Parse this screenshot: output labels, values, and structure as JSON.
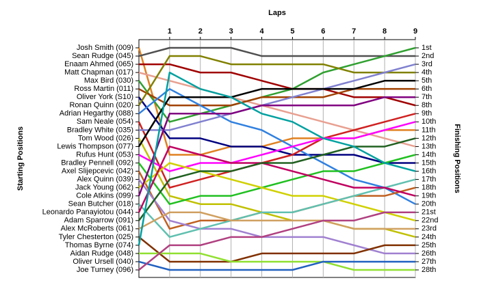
{
  "chart_data": {
    "type": "bump",
    "title": "Laps",
    "y_label_left": "Starting Positions",
    "y_label_right": "Finishing Positions",
    "x": [
      0,
      1,
      2,
      3,
      4,
      5,
      6,
      7,
      8,
      9
    ],
    "xlim": [
      0,
      9
    ],
    "xticks": [
      1,
      2,
      3,
      4,
      5,
      6,
      7,
      8,
      9
    ],
    "ylim": [
      1,
      28
    ],
    "yticks": [
      {
        "value": 1,
        "label": "1st"
      },
      {
        "value": 2,
        "label": "2nd"
      },
      {
        "value": 3,
        "label": "3rd"
      },
      {
        "value": 4,
        "label": "4th"
      },
      {
        "value": 5,
        "label": "5th"
      },
      {
        "value": 6,
        "label": "6th"
      },
      {
        "value": 7,
        "label": "7th"
      },
      {
        "value": 8,
        "label": "8th"
      },
      {
        "value": 9,
        "label": "9th"
      },
      {
        "value": 10,
        "label": "10th"
      },
      {
        "value": 11,
        "label": "11th"
      },
      {
        "value": 12,
        "label": "12th"
      },
      {
        "value": 13,
        "label": "13th"
      },
      {
        "value": 14,
        "label": "14th"
      },
      {
        "value": 15,
        "label": "15th"
      },
      {
        "value": 16,
        "label": "16th"
      },
      {
        "value": 17,
        "label": "17th"
      },
      {
        "value": 18,
        "label": "18th"
      },
      {
        "value": 19,
        "label": "19th"
      },
      {
        "value": 20,
        "label": "20th"
      },
      {
        "value": 21,
        "label": "21st"
      },
      {
        "value": 22,
        "label": "22nd"
      },
      {
        "value": 23,
        "label": "23rd"
      },
      {
        "value": 24,
        "label": "24th"
      },
      {
        "value": 25,
        "label": "25th"
      },
      {
        "value": 26,
        "label": "26th"
      },
      {
        "value": 27,
        "label": "27th"
      },
      {
        "value": 28,
        "label": "28th"
      }
    ],
    "grid": true,
    "series": [
      {
        "name": "Josh Smith (009)",
        "color": "#e08020",
        "values": [
          1,
          14,
          14,
          13,
          13,
          12,
          12,
          12,
          11,
          11
        ]
      },
      {
        "name": "Sean Rudge (045)",
        "color": "#505050",
        "values": [
          2,
          1,
          1,
          1,
          2,
          2,
          2,
          2,
          2,
          2
        ]
      },
      {
        "name": "Enaam Ahmed (065)",
        "color": "#a00000",
        "values": [
          3,
          3,
          4,
          4,
          5,
          6,
          6,
          7,
          7,
          8
        ]
      },
      {
        "name": "Matt Chapman (017)",
        "color": "#e8a090",
        "values": [
          4,
          5,
          6,
          7,
          8,
          9,
          10,
          11,
          12,
          13
        ]
      },
      {
        "name": "Max Bird (030)",
        "color": "#30a030",
        "values": [
          5,
          10,
          9,
          8,
          7,
          6,
          4,
          3,
          2,
          1
        ]
      },
      {
        "name": "Ross Martin (011)",
        "color": "#a04000",
        "values": [
          6,
          8,
          8,
          8,
          7,
          7,
          7,
          6,
          6,
          6
        ]
      },
      {
        "name": "Oliver York (S10)",
        "color": "#000080",
        "values": [
          7,
          12,
          12,
          13,
          13,
          14,
          14,
          14,
          15,
          15
        ]
      },
      {
        "name": "Ronan Quinn (020)",
        "color": "#808000",
        "values": [
          8,
          2,
          2,
          3,
          3,
          3,
          3,
          4,
          4,
          4
        ]
      },
      {
        "name": "Adrian Hegarthy (088)",
        "color": "#3080e0",
        "values": [
          9,
          6,
          8,
          10,
          11,
          13,
          15,
          17,
          18,
          20
        ]
      },
      {
        "name": "Sam Neale (054)",
        "color": "#d02020",
        "values": [
          10,
          18,
          17,
          16,
          15,
          14,
          12,
          11,
          10,
          9
        ]
      },
      {
        "name": "Bradley White (035)",
        "color": "#8080d0",
        "values": [
          11,
          11,
          10,
          9,
          8,
          7,
          6,
          5,
          4,
          3
        ]
      },
      {
        "name": "Tom Wood (026)",
        "color": "#c0c000",
        "values": [
          12,
          19,
          20,
          20,
          21,
          22,
          22,
          23,
          23,
          24
        ]
      },
      {
        "name": "Lewis Thompson (077)",
        "color": "#000000",
        "values": [
          13,
          7,
          7,
          7,
          6,
          6,
          6,
          6,
          5,
          5
        ]
      },
      {
        "name": "Rufus Hunt (053)",
        "color": "#ff00ff",
        "values": [
          14,
          16,
          15,
          15,
          14,
          13,
          12,
          12,
          11,
          10
        ]
      },
      {
        "name": "Bradley Pennell (092)",
        "color": "#20c020",
        "values": [
          15,
          20,
          19,
          19,
          18,
          17,
          16,
          16,
          15,
          14
        ]
      },
      {
        "name": "Axel Slijepcevic (042)",
        "color": "#c06020",
        "values": [
          16,
          23,
          22,
          22,
          21,
          21,
          20,
          19,
          19,
          18
        ]
      },
      {
        "name": "Alex Quinn (039)",
        "color": "#a080d0",
        "values": [
          17,
          22,
          23,
          23,
          24,
          24,
          24,
          25,
          26,
          26
        ]
      },
      {
        "name": "Jack Young (062)",
        "color": "#d0d000",
        "values": [
          18,
          15,
          16,
          17,
          18,
          19,
          19,
          20,
          21,
          22
        ]
      },
      {
        "name": "Cole Atkins (099)",
        "color": "#800080",
        "values": [
          19,
          9,
          9,
          9,
          8,
          8,
          8,
          8,
          7,
          7
        ]
      },
      {
        "name": "Sean Butcher (018)",
        "color": "#60c0b0",
        "values": [
          20,
          24,
          23,
          22,
          21,
          21,
          20,
          19,
          18,
          17
        ]
      },
      {
        "name": "Leonardo Panayiotou (044)",
        "color": "#c00060",
        "values": [
          21,
          13,
          14,
          15,
          15,
          16,
          17,
          18,
          18,
          19
        ]
      },
      {
        "name": "Adam Sparrow (091)",
        "color": "#206020",
        "values": [
          22,
          17,
          16,
          16,
          15,
          15,
          14,
          13,
          13,
          12
        ]
      },
      {
        "name": "Alex McRoberts (061)",
        "color": "#d0a060",
        "values": [
          23,
          21,
          21,
          22,
          22,
          22,
          22,
          23,
          23,
          23
        ]
      },
      {
        "name": "Tyler Chesterton (025)",
        "color": "#803000",
        "values": [
          24,
          27,
          27,
          27,
          26,
          26,
          26,
          26,
          25,
          25
        ]
      },
      {
        "name": "Thomas Byrne (074)",
        "color": "#00a0a0",
        "values": [
          25,
          4,
          6,
          7,
          9,
          10,
          12,
          13,
          15,
          16
        ]
      },
      {
        "name": "Aidan Rudge (048)",
        "color": "#90e030",
        "values": [
          26,
          26,
          26,
          27,
          27,
          27,
          27,
          28,
          28,
          28
        ]
      },
      {
        "name": "Oliver Ursell (040)",
        "color": "#2060c0",
        "values": [
          27,
          28,
          28,
          28,
          28,
          28,
          27,
          27,
          27,
          27
        ]
      },
      {
        "name": "Joe Turney (096)",
        "color": "#b04080",
        "values": [
          28,
          25,
          25,
          24,
          24,
          23,
          22,
          22,
          21,
          21
        ]
      }
    ]
  }
}
